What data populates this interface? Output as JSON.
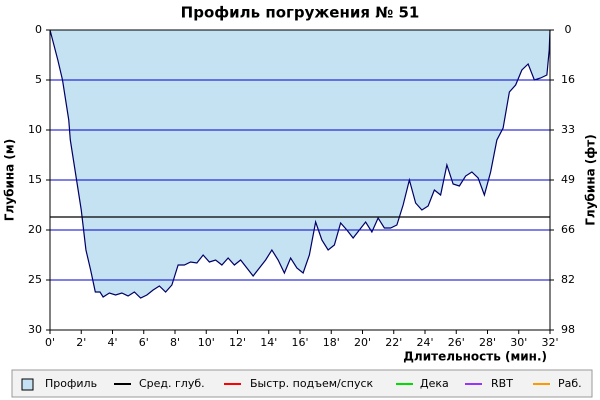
{
  "chart_data": {
    "type": "area",
    "title": "Профиль погружения № 51",
    "y_label": "Глубина (м)",
    "y2_label": "Глубина (фт)",
    "x_label": "Длительность (мин.)",
    "xlim": [
      0,
      32
    ],
    "xticks": [
      {
        "value": 0,
        "label": "0'"
      },
      {
        "value": 2,
        "label": "2'"
      },
      {
        "value": 4,
        "label": "4'"
      },
      {
        "value": 6,
        "label": "6'"
      },
      {
        "value": 8,
        "label": "8'"
      },
      {
        "value": 10,
        "label": "10'"
      },
      {
        "value": 12,
        "label": "12'"
      },
      {
        "value": 14,
        "label": "14'"
      },
      {
        "value": 16,
        "label": "16'"
      },
      {
        "value": 18,
        "label": "18'"
      },
      {
        "value": 20,
        "label": "20'"
      },
      {
        "value": 22,
        "label": "22'"
      },
      {
        "value": 24,
        "label": "24'"
      },
      {
        "value": 26,
        "label": "26'"
      },
      {
        "value": 28,
        "label": "28'"
      },
      {
        "value": 30,
        "label": "30'"
      },
      {
        "value": 32,
        "label": "32'"
      }
    ],
    "ylim": [
      0,
      30
    ],
    "yticks": [
      0,
      5,
      10,
      15,
      20,
      25,
      30
    ],
    "y_inverted": true,
    "y2lim": [
      0,
      98.4
    ],
    "y2ticks": [
      0,
      {
        "value": 16.4,
        "label": "16"
      },
      {
        "value": 32.8,
        "label": "33"
      },
      {
        "value": 49.2,
        "label": "49"
      },
      {
        "value": 65.6,
        "label": "66"
      },
      {
        "value": 82,
        "label": "82"
      },
      {
        "value": 98.4,
        "label": "98"
      }
    ],
    "grid_color": "#0000cc",
    "x": [
      0,
      0.5,
      0.8,
      1.0,
      1.2,
      1.3,
      1.6,
      2.0,
      2.3,
      2.6,
      2.9,
      3.2,
      3.4,
      3.8,
      4.2,
      4.6,
      5.0,
      5.4,
      5.8,
      6.2,
      6.6,
      7.0,
      7.4,
      7.8,
      8.2,
      8.6,
      9.0,
      9.4,
      9.8,
      10.2,
      10.6,
      11.0,
      11.4,
      11.8,
      12.2,
      12.6,
      13.0,
      13.4,
      13.8,
      14.2,
      14.6,
      15.0,
      15.4,
      15.8,
      16.2,
      16.6,
      17.0,
      17.4,
      17.8,
      18.2,
      18.6,
      19.0,
      19.4,
      19.8,
      20.2,
      20.6,
      21.0,
      21.4,
      21.8,
      22.2,
      22.6,
      23.0,
      23.4,
      23.8,
      24.2,
      24.6,
      25.0,
      25.4,
      25.8,
      26.2,
      26.6,
      27.0,
      27.4,
      27.8,
      28.2,
      28.6,
      29.0,
      29.4,
      29.8,
      30.2,
      30.6,
      31.0,
      31.4,
      31.8,
      31.95,
      32
    ],
    "series": [
      {
        "name": "Профиль",
        "color": "#c5e2f2",
        "line_color": "#000066",
        "values": [
          0,
          3,
          5,
          7,
          9,
          11,
          14,
          18,
          22,
          24,
          26.2,
          26.2,
          26.7,
          26.3,
          26.5,
          26.3,
          26.6,
          26.2,
          26.8,
          26.5,
          26,
          25.6,
          26.2,
          25.5,
          23.5,
          23.5,
          23.2,
          23.3,
          22.5,
          23.2,
          23,
          23.5,
          22.8,
          23.5,
          23,
          23.8,
          24.6,
          23.8,
          23,
          22,
          23,
          24.3,
          22.8,
          23.8,
          24.3,
          22.5,
          19.2,
          21,
          22,
          21.5,
          19.3,
          20,
          20.8,
          20,
          19.2,
          20.2,
          18.8,
          19.8,
          19.8,
          19.5,
          17.5,
          15,
          17.3,
          18,
          17.6,
          16,
          16.5,
          13.5,
          15.4,
          15.6,
          14.6,
          14.2,
          14.8,
          16.5,
          14.2,
          11,
          9.8,
          6.2,
          5.5,
          4,
          3.4,
          5,
          4.8,
          4.5,
          2,
          0
        ]
      }
    ],
    "reference_lines": [
      {
        "name": "Сред. глуб.",
        "color": "#000000",
        "value": 18.7
      }
    ],
    "legend_only": [
      {
        "name": "Быстр. подъем/спуск",
        "color": "#ff0000"
      },
      {
        "name": "Дека",
        "color": "#00dd00"
      },
      {
        "name": "RBT",
        "color": "#9933ff"
      },
      {
        "name": "Раб.",
        "color": "#ff9900"
      }
    ]
  }
}
